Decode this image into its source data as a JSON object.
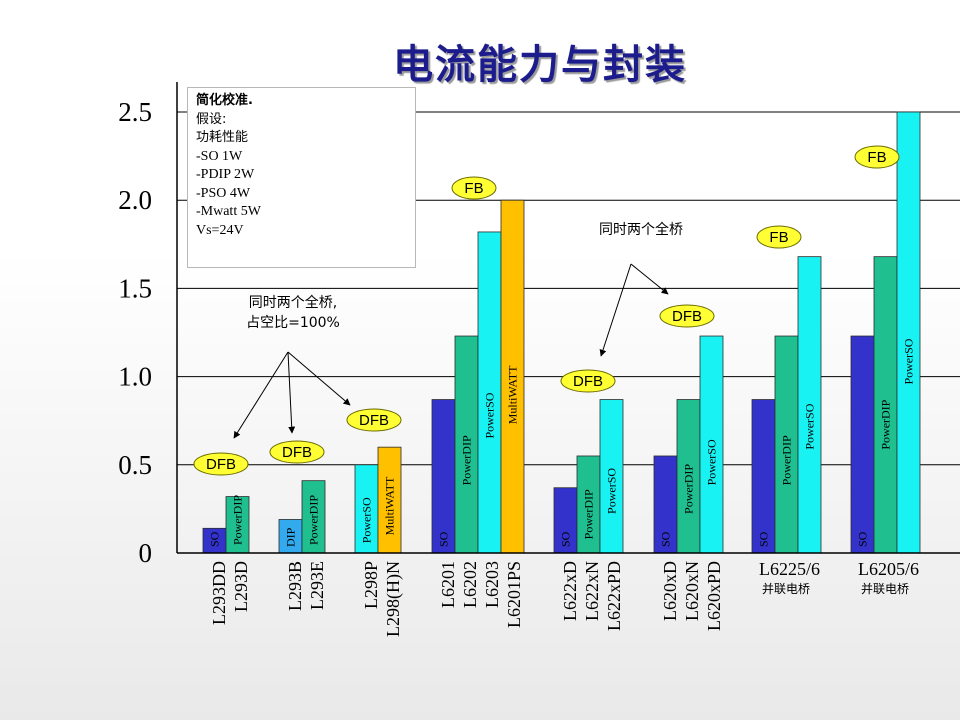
{
  "title": "电流能力与封装",
  "note_box": {
    "title": "简化校准.",
    "lines": [
      "假设:",
      "功耗性能",
      "-SO 1W",
      "-PDIP 2W",
      "-PSO 4W",
      "-Mwatt 5W",
      "",
      "Vs=24V"
    ]
  },
  "colors": {
    "SO": "#3333cc",
    "PowerDIP": "#1fbf8f",
    "PowerSO": "#19f2f2",
    "MultiWATT": "#ffc000",
    "DIP": "#33aaee"
  },
  "chart_data": {
    "type": "bar",
    "title": "电流能力与封装",
    "ylim": [
      0,
      2.5
    ],
    "yticks": [
      "0",
      "0.5",
      "1.0",
      "1.5",
      "2.0",
      "2.5"
    ],
    "grid": true,
    "groups": [
      {
        "labels": [
          "L293DD",
          "L293D"
        ],
        "sub": "",
        "badge": "DFB",
        "bars": [
          {
            "pkg": "SO",
            "label": "SO",
            "value": 0.14
          },
          {
            "pkg": "PowerDIP",
            "label": "PowerDIP",
            "value": 0.32
          }
        ]
      },
      {
        "labels": [
          "L293B",
          "L293E"
        ],
        "sub": "",
        "badge": "DFB",
        "bars": [
          {
            "pkg": "DIP",
            "label": "DIP",
            "value": 0.19
          },
          {
            "pkg": "PowerDIP",
            "label": "PowerDIP",
            "value": 0.41
          }
        ]
      },
      {
        "labels": [
          "L298P",
          "L298(H)N"
        ],
        "sub": "",
        "badge": "DFB",
        "bars": [
          {
            "pkg": "PowerSO",
            "label": "PowerSO",
            "value": 0.5
          },
          {
            "pkg": "MultiWATT",
            "label": "MultiWATT",
            "value": 0.6
          }
        ]
      },
      {
        "labels": [
          "L6201",
          "L6202",
          "L6203",
          "L6201PS"
        ],
        "sub": "",
        "badge": "FB",
        "bars": [
          {
            "pkg": "SO",
            "label": "SO",
            "value": 0.87
          },
          {
            "pkg": "PowerDIP",
            "label": "PowerDIP",
            "value": 1.23
          },
          {
            "pkg": "PowerSO",
            "label": "PowerSO",
            "value": 1.82
          },
          {
            "pkg": "MultiWATT",
            "label": "MultiWATT",
            "value": 2.0
          }
        ]
      },
      {
        "labels": [
          "L622xD",
          "L622xN",
          "L622xPD"
        ],
        "sub": "",
        "badge": "DFB",
        "bars": [
          {
            "pkg": "SO",
            "label": "SO",
            "value": 0.37
          },
          {
            "pkg": "PowerDIP",
            "label": "PowerDIP",
            "value": 0.55
          },
          {
            "pkg": "PowerSO",
            "label": "PowerSO",
            "value": 0.87
          }
        ]
      },
      {
        "labels": [
          "L620xD",
          "L620xN",
          "L620xPD"
        ],
        "sub": "",
        "badge": "DFB",
        "bars": [
          {
            "pkg": "SO",
            "label": "SO",
            "value": 0.55
          },
          {
            "pkg": "PowerDIP",
            "label": "PowerDIP",
            "value": 0.87
          },
          {
            "pkg": "PowerSO",
            "label": "PowerSO",
            "value": 1.23
          }
        ]
      },
      {
        "labels": [
          "L6225/6"
        ],
        "sub": "并联电桥",
        "badge": "FB",
        "bars": [
          {
            "pkg": "SO",
            "label": "SO",
            "value": 0.87
          },
          {
            "pkg": "PowerDIP",
            "label": "PowerDIP",
            "value": 1.23
          },
          {
            "pkg": "PowerSO",
            "label": "PowerSO",
            "value": 1.68
          }
        ]
      },
      {
        "labels": [
          "L6205/6"
        ],
        "sub": "并联电桥",
        "badge": "FB",
        "bars": [
          {
            "pkg": "SO",
            "label": "SO",
            "value": 1.23
          },
          {
            "pkg": "PowerDIP",
            "label": "PowerDIP",
            "value": 1.68
          },
          {
            "pkg": "PowerSO",
            "label": "PowerSO",
            "value": 2.5
          }
        ]
      }
    ],
    "annotations": [
      {
        "text": [
          "同时两个全桥,",
          "占空比=100%"
        ]
      },
      {
        "text": [
          "同时两个全桥"
        ]
      }
    ]
  }
}
